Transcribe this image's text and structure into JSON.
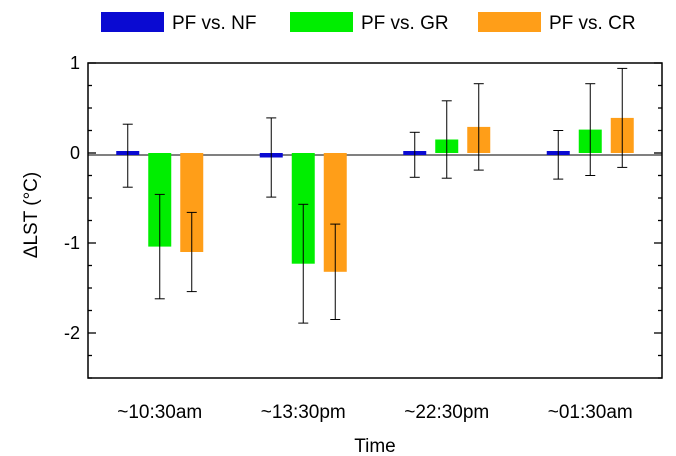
{
  "chart_data": {
    "type": "bar",
    "title": "",
    "xlabel": "Time",
    "ylabel": "ΔLST (°C)",
    "ylim": [
      -2.5,
      1.0
    ],
    "yticks": [
      {
        "value": 1,
        "label": "1"
      },
      {
        "value": 0,
        "label": "0"
      },
      {
        "value": -1,
        "label": "-1"
      },
      {
        "value": -2,
        "label": "-2"
      }
    ],
    "categories": [
      "~10:30am",
      "~13:30pm",
      "~22:30pm",
      "~01:30am"
    ],
    "legend_position": "top",
    "series": [
      {
        "name": "PF vs. NF",
        "color": "#0a0ad2",
        "values": [
          -0.03,
          -0.05,
          -0.02,
          -0.02
        ],
        "error": [
          0.35,
          0.44,
          0.25,
          0.27
        ]
      },
      {
        "name": "PF vs. GR",
        "color": "#00ee00",
        "values": [
          -1.04,
          -1.23,
          0.15,
          0.26
        ],
        "error": [
          0.58,
          0.66,
          0.43,
          0.51
        ]
      },
      {
        "name": "PF vs. CR",
        "color": "#ff9e18",
        "values": [
          -1.1,
          -1.32,
          0.29,
          0.39
        ],
        "error": [
          0.44,
          0.53,
          0.48,
          0.55
        ]
      }
    ]
  }
}
